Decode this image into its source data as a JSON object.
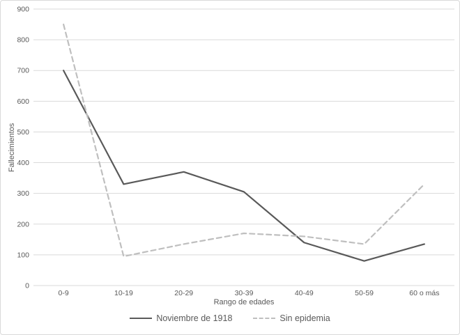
{
  "chart_data": {
    "type": "line",
    "title": "",
    "categories": [
      "0-9",
      "10-19",
      "20-29",
      "30-39",
      "40-49",
      "50-59",
      "60 o más"
    ],
    "series": [
      {
        "name": "Noviembre de 1918",
        "values": [
          700,
          330,
          370,
          305,
          140,
          80,
          135
        ],
        "color": "#595959",
        "dash": "solid"
      },
      {
        "name": "Sin epidemia",
        "values": [
          850,
          95,
          135,
          170,
          160,
          135,
          330
        ],
        "color": "#bfbfbf",
        "dash": "dashed"
      }
    ],
    "xlabel": "Rango de edades",
    "ylabel": "Fallecimientos",
    "ylim": [
      0,
      900
    ],
    "yticks": [
      0,
      100,
      200,
      300,
      400,
      500,
      600,
      700,
      800,
      900
    ],
    "grid": true,
    "legend_position": "bottom"
  },
  "colors": {
    "background": "#ffffff",
    "frame_border": "#d9d9d9",
    "gridline": "#d9d9d9",
    "axis_text": "#595959",
    "series_solid": "#595959",
    "series_dashed": "#bfbfbf"
  }
}
